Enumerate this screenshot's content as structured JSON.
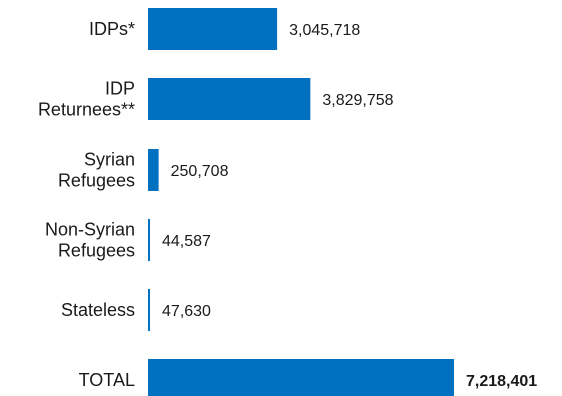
{
  "chart_data": {
    "type": "bar",
    "orientation": "horizontal",
    "title": "",
    "xlabel": "",
    "ylabel": "",
    "categories": [
      [
        "IDPs*"
      ],
      [
        "IDP",
        "Returnees**"
      ],
      [
        "Syrian",
        "Refugees"
      ],
      [
        "Non-Syrian",
        "Refugees"
      ],
      [
        "Stateless"
      ],
      [
        "TOTAL"
      ]
    ],
    "values": [
      3045718,
      3829758,
      250708,
      44587,
      47630,
      7218401
    ],
    "value_labels": [
      "3,045,718",
      "3,829,758",
      "250,708",
      "44,587",
      "47,630",
      "7,218,401"
    ],
    "bold_labels": [
      false,
      false,
      false,
      false,
      false,
      true
    ],
    "xlim": [
      0,
      7218401
    ],
    "grid": false,
    "legend": "none",
    "bar_color": "#0070c0"
  }
}
